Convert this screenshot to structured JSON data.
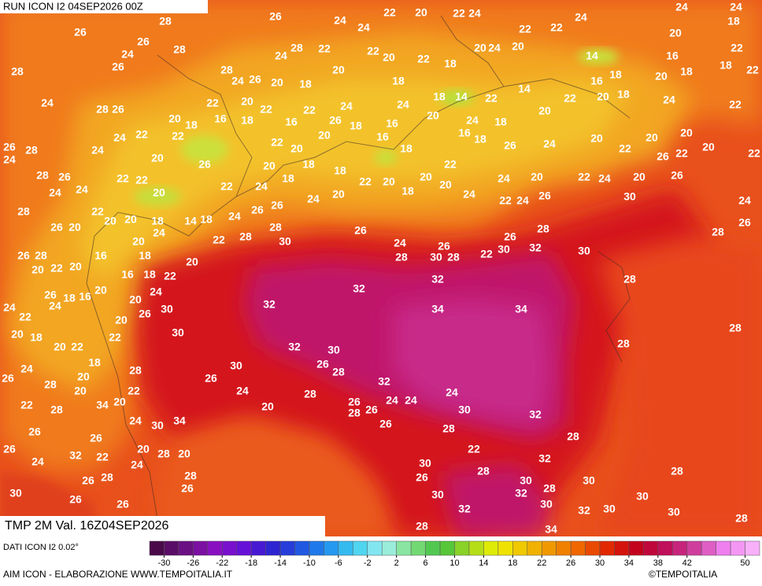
{
  "header": {
    "run": "RUN ICON I2 04SEP2026 00Z"
  },
  "map": {
    "labels": [
      28,
      26,
      26,
      24,
      24,
      22,
      20,
      22,
      24,
      22,
      22,
      24,
      24,
      24,
      20,
      18,
      26,
      28,
      24,
      26,
      28,
      28,
      24,
      22,
      22,
      20,
      22,
      18,
      20,
      24,
      20,
      14,
      16,
      22,
      28,
      24,
      26,
      20,
      18,
      20,
      18,
      18,
      14,
      22,
      14,
      22,
      16,
      18,
      20,
      18,
      18,
      22,
      24,
      28,
      26,
      22,
      20,
      22,
      16,
      22,
      24,
      24,
      20,
      24,
      18,
      20,
      20,
      18,
      24,
      22,
      20,
      18,
      16,
      18,
      20,
      26,
      18,
      16,
      24,
      22,
      22,
      20,
      16,
      18,
      16,
      18,
      26,
      24,
      20,
      22,
      20,
      20,
      20,
      26,
      28,
      24,
      22,
      24,
      28,
      26,
      20,
      26,
      20,
      18,
      18,
      22,
      20,
      20,
      22,
      24,
      20,
      22,
      24,
      20,
      26,
      22,
      22,
      24,
      24,
      22,
      22,
      20,
      22,
      24,
      18,
      24,
      20,
      18,
      20,
      24,
      22,
      24,
      26,
      30,
      26,
      24,
      28,
      22,
      20,
      20,
      18,
      14,
      18,
      24,
      26,
      26,
      26,
      20,
      24,
      20,
      22,
      28,
      28,
      26,
      30,
      24,
      26,
      26,
      28,
      16,
      18,
      20,
      28,
      30,
      28,
      22,
      30,
      26,
      28,
      32,
      30,
      28,
      26,
      20,
      22,
      20,
      16,
      18,
      22,
      32,
      32,
      28,
      26,
      18,
      16,
      20,
      20,
      24,
      32,
      34,
      34,
      24,
      22,
      24,
      20,
      26,
      30,
      28,
      20,
      18,
      22,
      30,
      20,
      22,
      18,
      32,
      30,
      28,
      24,
      28,
      30,
      26,
      28,
      20,
      26,
      32,
      26,
      28,
      20,
      22,
      24,
      28,
      24,
      34,
      20,
      22,
      28,
      20,
      26,
      28,
      26,
      24,
      24,
      30,
      32,
      34,
      30,
      24,
      26,
      26,
      28,
      26,
      20,
      26,
      32,
      22,
      24,
      28,
      20,
      24,
      22,
      28,
      32,
      30,
      28,
      26,
      28,
      26,
      26,
      28,
      30,
      30,
      28,
      30,
      26,
      26,
      30,
      32,
      28,
      30,
      32,
      30,
      32,
      30,
      30,
      34,
      28,
      28
    ]
  },
  "footer": {
    "valid": "TMP 2M Val. 16Z04SEP2026",
    "source": "DATI ICON I2 0.02°",
    "credit": "AIM ICON - ELABORAZIONE WWW.TEMPOITALIA.IT",
    "copyright": "©TEMPOITALIA"
  },
  "colorbar": {
    "lim": [
      -32,
      52
    ],
    "ticks": [
      -30,
      -26,
      -22,
      -18,
      -14,
      -10,
      -6,
      -2,
      2,
      6,
      10,
      14,
      18,
      22,
      26,
      30,
      34,
      38,
      42,
      50
    ]
  }
}
